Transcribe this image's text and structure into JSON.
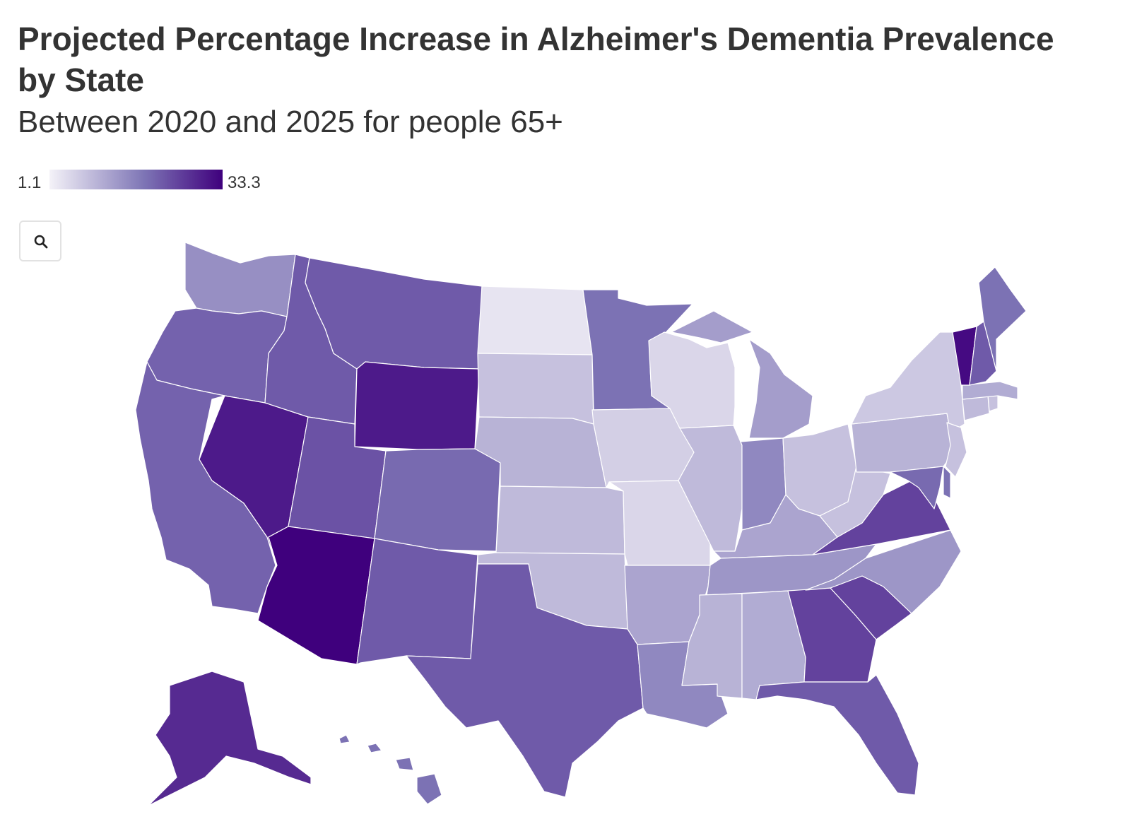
{
  "title": "Projected Percentage Increase in Alzheimer's Dementia Prevalence by State",
  "subtitle": "Between 2020 and 2025 for people 65+",
  "legend": {
    "min_label": "1.1",
    "max_label": "33.3",
    "min": 1.1,
    "max": 33.3,
    "color_low": "#f4f2f8",
    "color_mid": "#7d74b5",
    "color_high": "#3f007d"
  },
  "zoom_button": {
    "icon": "search-icon"
  },
  "chart_data": {
    "type": "choropleth",
    "title": "Projected Percentage Increase in Alzheimer's Dementia Prevalence by State",
    "subtitle": "Between 2020 and 2025 for people 65+",
    "scale": {
      "min": 1.1,
      "max": 33.3
    },
    "regions": [
      {
        "id": "WA",
        "value": 15
      },
      {
        "id": "OR",
        "value": 21
      },
      {
        "id": "CA",
        "value": 21
      },
      {
        "id": "NV",
        "value": 30
      },
      {
        "id": "ID",
        "value": 22
      },
      {
        "id": "MT",
        "value": 22
      },
      {
        "id": "WY",
        "value": 30
      },
      {
        "id": "UT",
        "value": 23
      },
      {
        "id": "AZ",
        "value": 33.3
      },
      {
        "id": "CO",
        "value": 20
      },
      {
        "id": "NM",
        "value": 22
      },
      {
        "id": "ND",
        "value": 3
      },
      {
        "id": "SD",
        "value": 8
      },
      {
        "id": "NE",
        "value": 10
      },
      {
        "id": "KS",
        "value": 9
      },
      {
        "id": "OK",
        "value": 9
      },
      {
        "id": "TX",
        "value": 22
      },
      {
        "id": "MN",
        "value": 19
      },
      {
        "id": "IA",
        "value": 6
      },
      {
        "id": "MO",
        "value": 5
      },
      {
        "id": "AR",
        "value": 12
      },
      {
        "id": "LA",
        "value": 16
      },
      {
        "id": "WI",
        "value": 5
      },
      {
        "id": "IL",
        "value": 9
      },
      {
        "id": "MI",
        "value": 13
      },
      {
        "id": "IN",
        "value": 16
      },
      {
        "id": "OH",
        "value": 8
      },
      {
        "id": "KY",
        "value": 12
      },
      {
        "id": "TN",
        "value": 14
      },
      {
        "id": "MS",
        "value": 10
      },
      {
        "id": "AL",
        "value": 11
      },
      {
        "id": "GA",
        "value": 25
      },
      {
        "id": "FL",
        "value": 22
      },
      {
        "id": "SC",
        "value": 25
      },
      {
        "id": "NC",
        "value": 14
      },
      {
        "id": "VA",
        "value": 25
      },
      {
        "id": "WV",
        "value": 8
      },
      {
        "id": "PA",
        "value": 10
      },
      {
        "id": "NY",
        "value": 7
      },
      {
        "id": "MD",
        "value": 20
      },
      {
        "id": "DE",
        "value": 19
      },
      {
        "id": "NJ",
        "value": 8
      },
      {
        "id": "CT",
        "value": 9
      },
      {
        "id": "RI",
        "value": 8
      },
      {
        "id": "MA",
        "value": 11
      },
      {
        "id": "VT",
        "value": 32
      },
      {
        "id": "NH",
        "value": 22
      },
      {
        "id": "ME",
        "value": 19
      },
      {
        "id": "AK",
        "value": 28
      },
      {
        "id": "HI",
        "value": 19
      }
    ]
  }
}
